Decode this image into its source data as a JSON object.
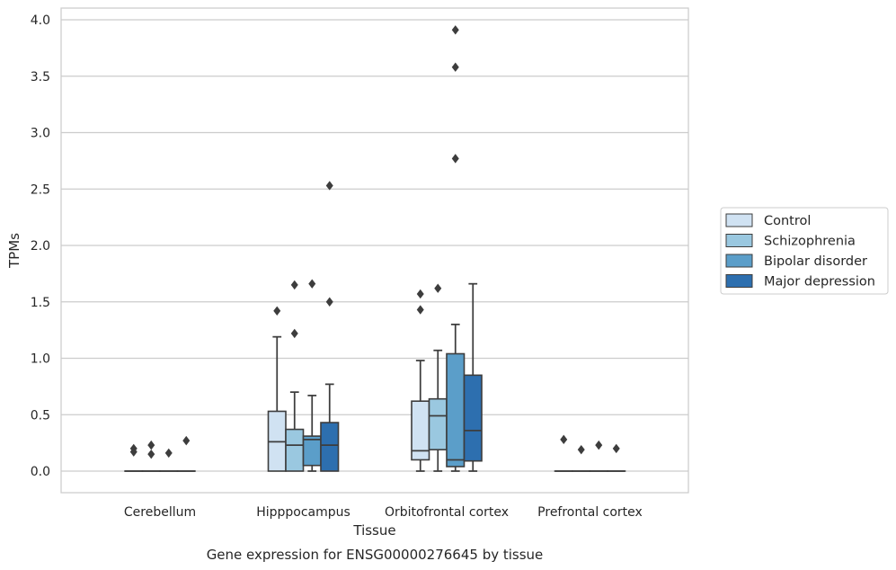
{
  "chart_data": {
    "type": "boxplot",
    "xlabel": "Tissue",
    "ylabel": "TPMs",
    "caption": "Gene expression for ENSG00000276645 by tissue",
    "ylim": [
      -0.19,
      4.1
    ],
    "yticks": [
      "0.0",
      "0.5",
      "1.0",
      "1.5",
      "2.0",
      "2.5",
      "3.0",
      "3.5",
      "4.0"
    ],
    "grid": "horizontal",
    "legend_position": "right",
    "categories": [
      "Cerebellum",
      "Hipppocampus",
      "Orbitofrontal cortex",
      "Prefrontal cortex"
    ],
    "series": [
      {
        "name": "Control",
        "color": "#d0e2f2",
        "boxes": [
          {
            "q1": 0,
            "median": 0,
            "q3": 0,
            "whisker_low": 0,
            "whisker_high": 0,
            "outliers": [
              0.17,
              0.2
            ]
          },
          {
            "q1": 0,
            "median": 0.26,
            "q3": 0.53,
            "whisker_low": 0,
            "whisker_high": 1.19,
            "outliers": [
              1.42
            ]
          },
          {
            "q1": 0.1,
            "median": 0.18,
            "q3": 0.62,
            "whisker_low": 0,
            "whisker_high": 0.98,
            "outliers": [
              1.43,
              1.57
            ]
          },
          {
            "q1": 0,
            "median": 0,
            "q3": 0,
            "whisker_low": 0,
            "whisker_high": 0,
            "outliers": [
              0.28
            ]
          }
        ]
      },
      {
        "name": "Schizophrenia",
        "color": "#9ac8e0",
        "boxes": [
          {
            "q1": 0,
            "median": 0,
            "q3": 0,
            "whisker_low": 0,
            "whisker_high": 0,
            "outliers": [
              0.15,
              0.23
            ]
          },
          {
            "q1": 0,
            "median": 0.23,
            "q3": 0.37,
            "whisker_low": 0,
            "whisker_high": 0.7,
            "outliers": [
              1.22,
              1.65
            ]
          },
          {
            "q1": 0.19,
            "median": 0.49,
            "q3": 0.64,
            "whisker_low": 0,
            "whisker_high": 1.07,
            "outliers": [
              1.62
            ]
          },
          {
            "q1": 0,
            "median": 0,
            "q3": 0,
            "whisker_low": 0,
            "whisker_high": 0,
            "outliers": [
              0.19
            ]
          }
        ]
      },
      {
        "name": "Bipolar disorder",
        "color": "#5b9ec9",
        "boxes": [
          {
            "q1": 0,
            "median": 0,
            "q3": 0,
            "whisker_low": 0,
            "whisker_high": 0,
            "outliers": [
              0.16
            ]
          },
          {
            "q1": 0.05,
            "median": 0.28,
            "q3": 0.31,
            "whisker_low": 0,
            "whisker_high": 0.67,
            "outliers": [
              1.66
            ]
          },
          {
            "q1": 0.04,
            "median": 0.1,
            "q3": 1.04,
            "whisker_low": 0,
            "whisker_high": 1.3,
            "outliers": [
              2.77,
              3.58,
              3.91
            ]
          },
          {
            "q1": 0,
            "median": 0,
            "q3": 0,
            "whisker_low": 0,
            "whisker_high": 0,
            "outliers": [
              0.23
            ]
          }
        ]
      },
      {
        "name": "Major depression",
        "color": "#2d6faf",
        "boxes": [
          {
            "q1": 0,
            "median": 0,
            "q3": 0,
            "whisker_low": 0,
            "whisker_high": 0,
            "outliers": [
              0.27
            ]
          },
          {
            "q1": 0,
            "median": 0.23,
            "q3": 0.43,
            "whisker_low": 0,
            "whisker_high": 0.77,
            "outliers": [
              1.5,
              2.53
            ]
          },
          {
            "q1": 0.09,
            "median": 0.36,
            "q3": 0.85,
            "whisker_low": 0,
            "whisker_high": 1.66,
            "outliers": []
          },
          {
            "q1": 0,
            "median": 0,
            "q3": 0,
            "whisker_low": 0,
            "whisker_high": 0,
            "outliers": [
              0.2
            ]
          }
        ]
      }
    ]
  }
}
